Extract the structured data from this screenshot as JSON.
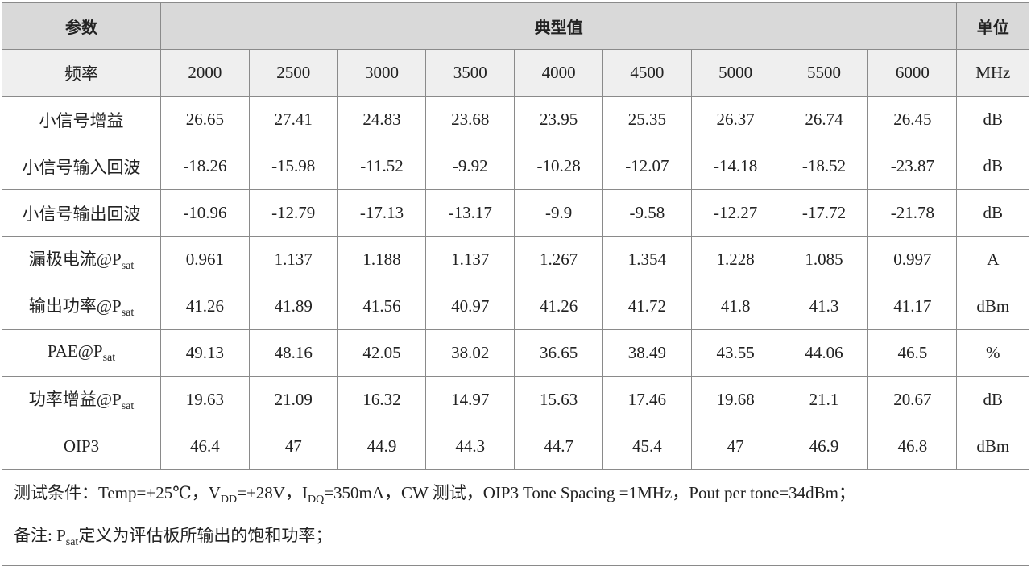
{
  "header": {
    "param": "参数",
    "typical": "典型值",
    "unit": "单位"
  },
  "table": {
    "rows": [
      {
        "label": [
          "频率"
        ],
        "values": [
          2000,
          2500,
          3000,
          3500,
          4000,
          4500,
          5000,
          5500,
          6000
        ],
        "unit": "MHz"
      },
      {
        "label": [
          "小信号增益"
        ],
        "values": [
          26.65,
          27.41,
          24.83,
          23.68,
          23.95,
          25.35,
          26.37,
          26.74,
          26.45
        ],
        "unit": "dB"
      },
      {
        "label": [
          "小信号输入回波"
        ],
        "values": [
          -18.26,
          -15.98,
          -11.52,
          -9.92,
          -10.28,
          -12.07,
          -14.18,
          -18.52,
          -23.87
        ],
        "unit": "dB"
      },
      {
        "label": [
          "小信号输出回波"
        ],
        "values": [
          -10.96,
          -12.79,
          -17.13,
          -13.17,
          -9.9,
          -9.58,
          -12.27,
          -17.72,
          -21.78
        ],
        "unit": "dB"
      },
      {
        "label": [
          "漏极电流@P",
          "sat"
        ],
        "values": [
          0.961,
          1.137,
          1.188,
          1.137,
          1.267,
          1.354,
          1.228,
          1.085,
          0.997
        ],
        "unit": "A"
      },
      {
        "label": [
          "输出功率@P",
          "sat"
        ],
        "values": [
          41.26,
          41.89,
          41.56,
          40.97,
          41.26,
          41.72,
          41.8,
          41.3,
          41.17
        ],
        "unit": "dBm"
      },
      {
        "label": [
          "PAE@P",
          "sat"
        ],
        "values": [
          49.13,
          48.16,
          42.05,
          38.02,
          36.65,
          38.49,
          43.55,
          44.06,
          46.5
        ],
        "unit": "%"
      },
      {
        "label": [
          "功率增益@P",
          "sat"
        ],
        "values": [
          19.63,
          21.09,
          16.32,
          14.97,
          15.63,
          17.46,
          19.68,
          21.1,
          20.67
        ],
        "unit": "dB"
      },
      {
        "label": [
          "OIP3"
        ],
        "values": [
          46.4,
          47,
          44.9,
          44.3,
          44.7,
          45.4,
          47,
          46.9,
          46.8
        ],
        "unit": "dBm"
      }
    ]
  },
  "notes": [
    [
      "测试条件：Temp=+25℃，V",
      "DD",
      "=+28V，I",
      "DQ",
      "=350mA，CW 测试，OIP3 Tone Spacing =1MHz，Pout per tone=34dBm；"
    ],
    [
      "备注: P",
      "sat",
      "定义为评估板所输出的饱和功率；"
    ]
  ]
}
